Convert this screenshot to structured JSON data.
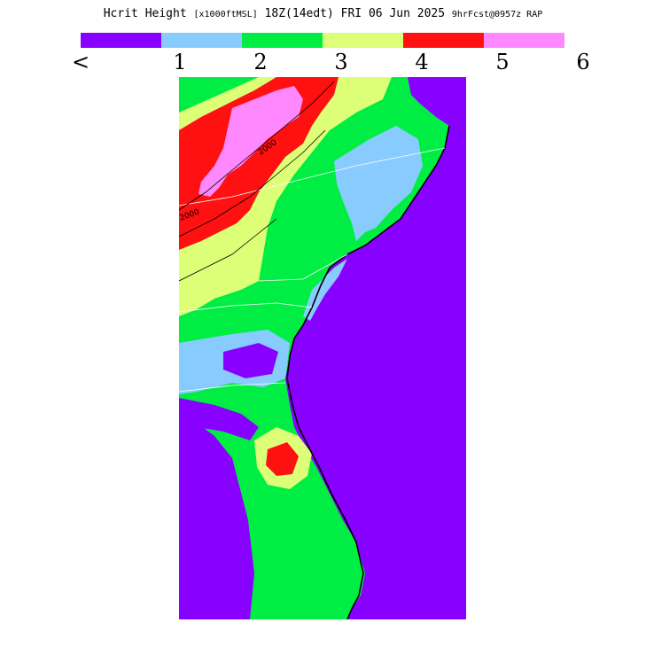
{
  "header": {
    "title_main": "Hcrit Height ",
    "title_units": "[x1000ftMSL]",
    "title_time": " 18Z(14edt) FRI 06 Jun 2025 ",
    "title_fcst": "9hrFcst@0957z RAP"
  },
  "legend": {
    "colors": [
      "#8800ff",
      "#88ccff",
      "#00ee44",
      "#ddff77",
      "#ff1111",
      "#ff88ff"
    ],
    "tick_labels": [
      "<",
      "1",
      "2",
      "3",
      "4",
      "5",
      "6"
    ]
  },
  "map": {
    "colors": {
      "purple": "#8800ff",
      "lightblue": "#88ccff",
      "green": "#00ee44",
      "yellow": "#ddff77",
      "red": "#ff1111",
      "pink": "#ff88ff"
    },
    "contour_labels": [
      "2000",
      "2000"
    ]
  }
}
